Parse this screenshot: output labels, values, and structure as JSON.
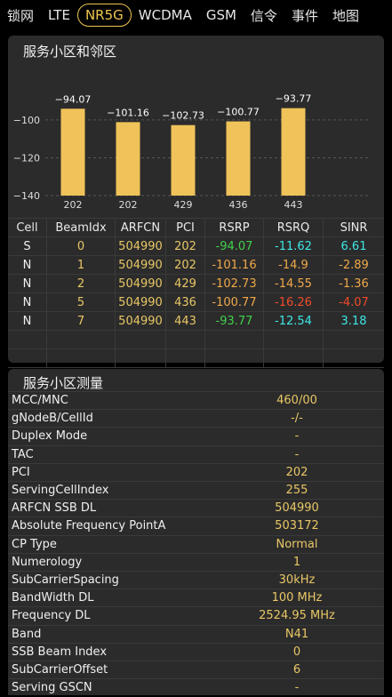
{
  "tabs": [
    "锁网",
    "LTE",
    "NR5G",
    "WCDMA",
    "GSM",
    "信令",
    "事件",
    "地图"
  ],
  "active_tab_index": 2,
  "cells_card": {
    "title": "服务小区和邻区",
    "chart_data": {
      "type": "bar",
      "categories": [
        "202",
        "202",
        "429",
        "436",
        "443"
      ],
      "values": [
        -94.07,
        -101.16,
        -102.73,
        -100.77,
        -93.77
      ],
      "value_labels": [
        "−94.07",
        "−101.16",
        "−102.73",
        "−100.77",
        "−93.77"
      ],
      "y_ticks": [
        -100,
        -120,
        -140
      ],
      "y_tick_labels": [
        "−100",
        "−120",
        "−140"
      ],
      "ylim": [
        -140,
        -85
      ],
      "grid": "horizontal dashed",
      "bar_color": "#f0c35a"
    },
    "table": {
      "headers": [
        "Cell",
        "BeamIdx",
        "ARFCN",
        "PCI",
        "RSRP",
        "RSRQ",
        "SINR"
      ],
      "rows": [
        [
          "S",
          "0",
          "504990",
          "202",
          "-94.07",
          "-11.62",
          "6.61"
        ],
        [
          "N",
          "1",
          "504990",
          "202",
          "-101.16",
          "-14.9",
          "-2.89"
        ],
        [
          "N",
          "2",
          "504990",
          "429",
          "-102.73",
          "-14.55",
          "-1.36"
        ],
        [
          "N",
          "5",
          "504990",
          "436",
          "-100.77",
          "-16.26",
          "-4.07"
        ],
        [
          "N",
          "7",
          "504990",
          "443",
          "-93.77",
          "-12.54",
          "3.18"
        ]
      ],
      "row_colors": [
        [
          "white",
          "yellow",
          "yellow",
          "yellow",
          "green",
          "cyan",
          "cyan"
        ],
        [
          "white",
          "yellow",
          "yellow",
          "yellow",
          "orange",
          "orange",
          "orange"
        ],
        [
          "white",
          "yellow",
          "yellow",
          "yellow",
          "orange",
          "orange",
          "orange"
        ],
        [
          "white",
          "yellow",
          "yellow",
          "yellow",
          "orange",
          "red",
          "red"
        ],
        [
          "white",
          "yellow",
          "yellow",
          "yellow",
          "green",
          "cyan",
          "cyan"
        ]
      ]
    }
  },
  "measure_card": {
    "title": "服务小区测量",
    "rows": [
      {
        "label": "MCC/MNC",
        "value": "460/00"
      },
      {
        "label": "gNodeB/CellId",
        "value": "-/-"
      },
      {
        "label": "Duplex Mode",
        "value": "-"
      },
      {
        "label": "TAC",
        "value": "-"
      },
      {
        "label": "PCI",
        "value": "202"
      },
      {
        "label": "ServingCellIndex",
        "value": "255"
      },
      {
        "label": "ARFCN SSB DL",
        "value": "504990"
      },
      {
        "label": "Absolute Frequency PointA",
        "value": "503172"
      },
      {
        "label": "CP Type",
        "value": "Normal"
      },
      {
        "label": "Numerology",
        "value": "1"
      },
      {
        "label": "SubCarrierSpacing",
        "value": "30kHz"
      },
      {
        "label": "BandWidth DL",
        "value": "100 MHz"
      },
      {
        "label": "Frequency DL",
        "value": "2524.95 MHz"
      },
      {
        "label": "Band",
        "value": "N41"
      },
      {
        "label": "SSB Beam Index",
        "value": "0"
      },
      {
        "label": "SubCarrierOffset",
        "value": "6"
      },
      {
        "label": "Serving GSCN",
        "value": "-"
      }
    ]
  }
}
